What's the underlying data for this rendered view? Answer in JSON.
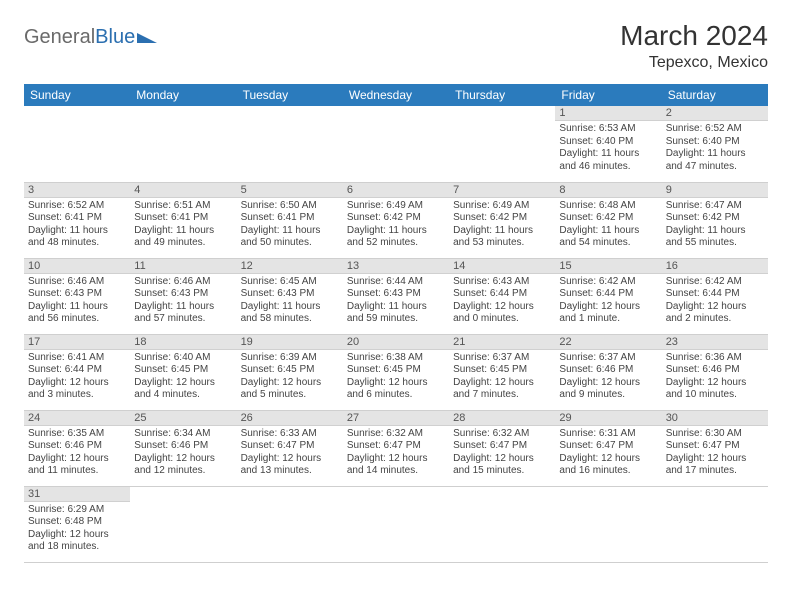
{
  "brand": {
    "part1": "General",
    "part2": "Blue"
  },
  "title": "March 2024",
  "location": "Tepexco, Mexico",
  "colors": {
    "header_bg": "#2b7bbd",
    "header_text": "#ffffff",
    "daynum_bg": "#e4e4e4",
    "border": "#cfcfcf",
    "text": "#444444"
  },
  "weekdays": [
    "Sunday",
    "Monday",
    "Tuesday",
    "Wednesday",
    "Thursday",
    "Friday",
    "Saturday"
  ],
  "weeks": [
    [
      null,
      null,
      null,
      null,
      null,
      {
        "n": "1",
        "sr": "Sunrise: 6:53 AM",
        "ss": "Sunset: 6:40 PM",
        "dl": "Daylight: 11 hours and 46 minutes."
      },
      {
        "n": "2",
        "sr": "Sunrise: 6:52 AM",
        "ss": "Sunset: 6:40 PM",
        "dl": "Daylight: 11 hours and 47 minutes."
      }
    ],
    [
      {
        "n": "3",
        "sr": "Sunrise: 6:52 AM",
        "ss": "Sunset: 6:41 PM",
        "dl": "Daylight: 11 hours and 48 minutes."
      },
      {
        "n": "4",
        "sr": "Sunrise: 6:51 AM",
        "ss": "Sunset: 6:41 PM",
        "dl": "Daylight: 11 hours and 49 minutes."
      },
      {
        "n": "5",
        "sr": "Sunrise: 6:50 AM",
        "ss": "Sunset: 6:41 PM",
        "dl": "Daylight: 11 hours and 50 minutes."
      },
      {
        "n": "6",
        "sr": "Sunrise: 6:49 AM",
        "ss": "Sunset: 6:42 PM",
        "dl": "Daylight: 11 hours and 52 minutes."
      },
      {
        "n": "7",
        "sr": "Sunrise: 6:49 AM",
        "ss": "Sunset: 6:42 PM",
        "dl": "Daylight: 11 hours and 53 minutes."
      },
      {
        "n": "8",
        "sr": "Sunrise: 6:48 AM",
        "ss": "Sunset: 6:42 PM",
        "dl": "Daylight: 11 hours and 54 minutes."
      },
      {
        "n": "9",
        "sr": "Sunrise: 6:47 AM",
        "ss": "Sunset: 6:42 PM",
        "dl": "Daylight: 11 hours and 55 minutes."
      }
    ],
    [
      {
        "n": "10",
        "sr": "Sunrise: 6:46 AM",
        "ss": "Sunset: 6:43 PM",
        "dl": "Daylight: 11 hours and 56 minutes."
      },
      {
        "n": "11",
        "sr": "Sunrise: 6:46 AM",
        "ss": "Sunset: 6:43 PM",
        "dl": "Daylight: 11 hours and 57 minutes."
      },
      {
        "n": "12",
        "sr": "Sunrise: 6:45 AM",
        "ss": "Sunset: 6:43 PM",
        "dl": "Daylight: 11 hours and 58 minutes."
      },
      {
        "n": "13",
        "sr": "Sunrise: 6:44 AM",
        "ss": "Sunset: 6:43 PM",
        "dl": "Daylight: 11 hours and 59 minutes."
      },
      {
        "n": "14",
        "sr": "Sunrise: 6:43 AM",
        "ss": "Sunset: 6:44 PM",
        "dl": "Daylight: 12 hours and 0 minutes."
      },
      {
        "n": "15",
        "sr": "Sunrise: 6:42 AM",
        "ss": "Sunset: 6:44 PM",
        "dl": "Daylight: 12 hours and 1 minute."
      },
      {
        "n": "16",
        "sr": "Sunrise: 6:42 AM",
        "ss": "Sunset: 6:44 PM",
        "dl": "Daylight: 12 hours and 2 minutes."
      }
    ],
    [
      {
        "n": "17",
        "sr": "Sunrise: 6:41 AM",
        "ss": "Sunset: 6:44 PM",
        "dl": "Daylight: 12 hours and 3 minutes."
      },
      {
        "n": "18",
        "sr": "Sunrise: 6:40 AM",
        "ss": "Sunset: 6:45 PM",
        "dl": "Daylight: 12 hours and 4 minutes."
      },
      {
        "n": "19",
        "sr": "Sunrise: 6:39 AM",
        "ss": "Sunset: 6:45 PM",
        "dl": "Daylight: 12 hours and 5 minutes."
      },
      {
        "n": "20",
        "sr": "Sunrise: 6:38 AM",
        "ss": "Sunset: 6:45 PM",
        "dl": "Daylight: 12 hours and 6 minutes."
      },
      {
        "n": "21",
        "sr": "Sunrise: 6:37 AM",
        "ss": "Sunset: 6:45 PM",
        "dl": "Daylight: 12 hours and 7 minutes."
      },
      {
        "n": "22",
        "sr": "Sunrise: 6:37 AM",
        "ss": "Sunset: 6:46 PM",
        "dl": "Daylight: 12 hours and 9 minutes."
      },
      {
        "n": "23",
        "sr": "Sunrise: 6:36 AM",
        "ss": "Sunset: 6:46 PM",
        "dl": "Daylight: 12 hours and 10 minutes."
      }
    ],
    [
      {
        "n": "24",
        "sr": "Sunrise: 6:35 AM",
        "ss": "Sunset: 6:46 PM",
        "dl": "Daylight: 12 hours and 11 minutes."
      },
      {
        "n": "25",
        "sr": "Sunrise: 6:34 AM",
        "ss": "Sunset: 6:46 PM",
        "dl": "Daylight: 12 hours and 12 minutes."
      },
      {
        "n": "26",
        "sr": "Sunrise: 6:33 AM",
        "ss": "Sunset: 6:47 PM",
        "dl": "Daylight: 12 hours and 13 minutes."
      },
      {
        "n": "27",
        "sr": "Sunrise: 6:32 AM",
        "ss": "Sunset: 6:47 PM",
        "dl": "Daylight: 12 hours and 14 minutes."
      },
      {
        "n": "28",
        "sr": "Sunrise: 6:32 AM",
        "ss": "Sunset: 6:47 PM",
        "dl": "Daylight: 12 hours and 15 minutes."
      },
      {
        "n": "29",
        "sr": "Sunrise: 6:31 AM",
        "ss": "Sunset: 6:47 PM",
        "dl": "Daylight: 12 hours and 16 minutes."
      },
      {
        "n": "30",
        "sr": "Sunrise: 6:30 AM",
        "ss": "Sunset: 6:47 PM",
        "dl": "Daylight: 12 hours and 17 minutes."
      }
    ],
    [
      {
        "n": "31",
        "sr": "Sunrise: 6:29 AM",
        "ss": "Sunset: 6:48 PM",
        "dl": "Daylight: 12 hours and 18 minutes."
      },
      null,
      null,
      null,
      null,
      null,
      null
    ]
  ]
}
